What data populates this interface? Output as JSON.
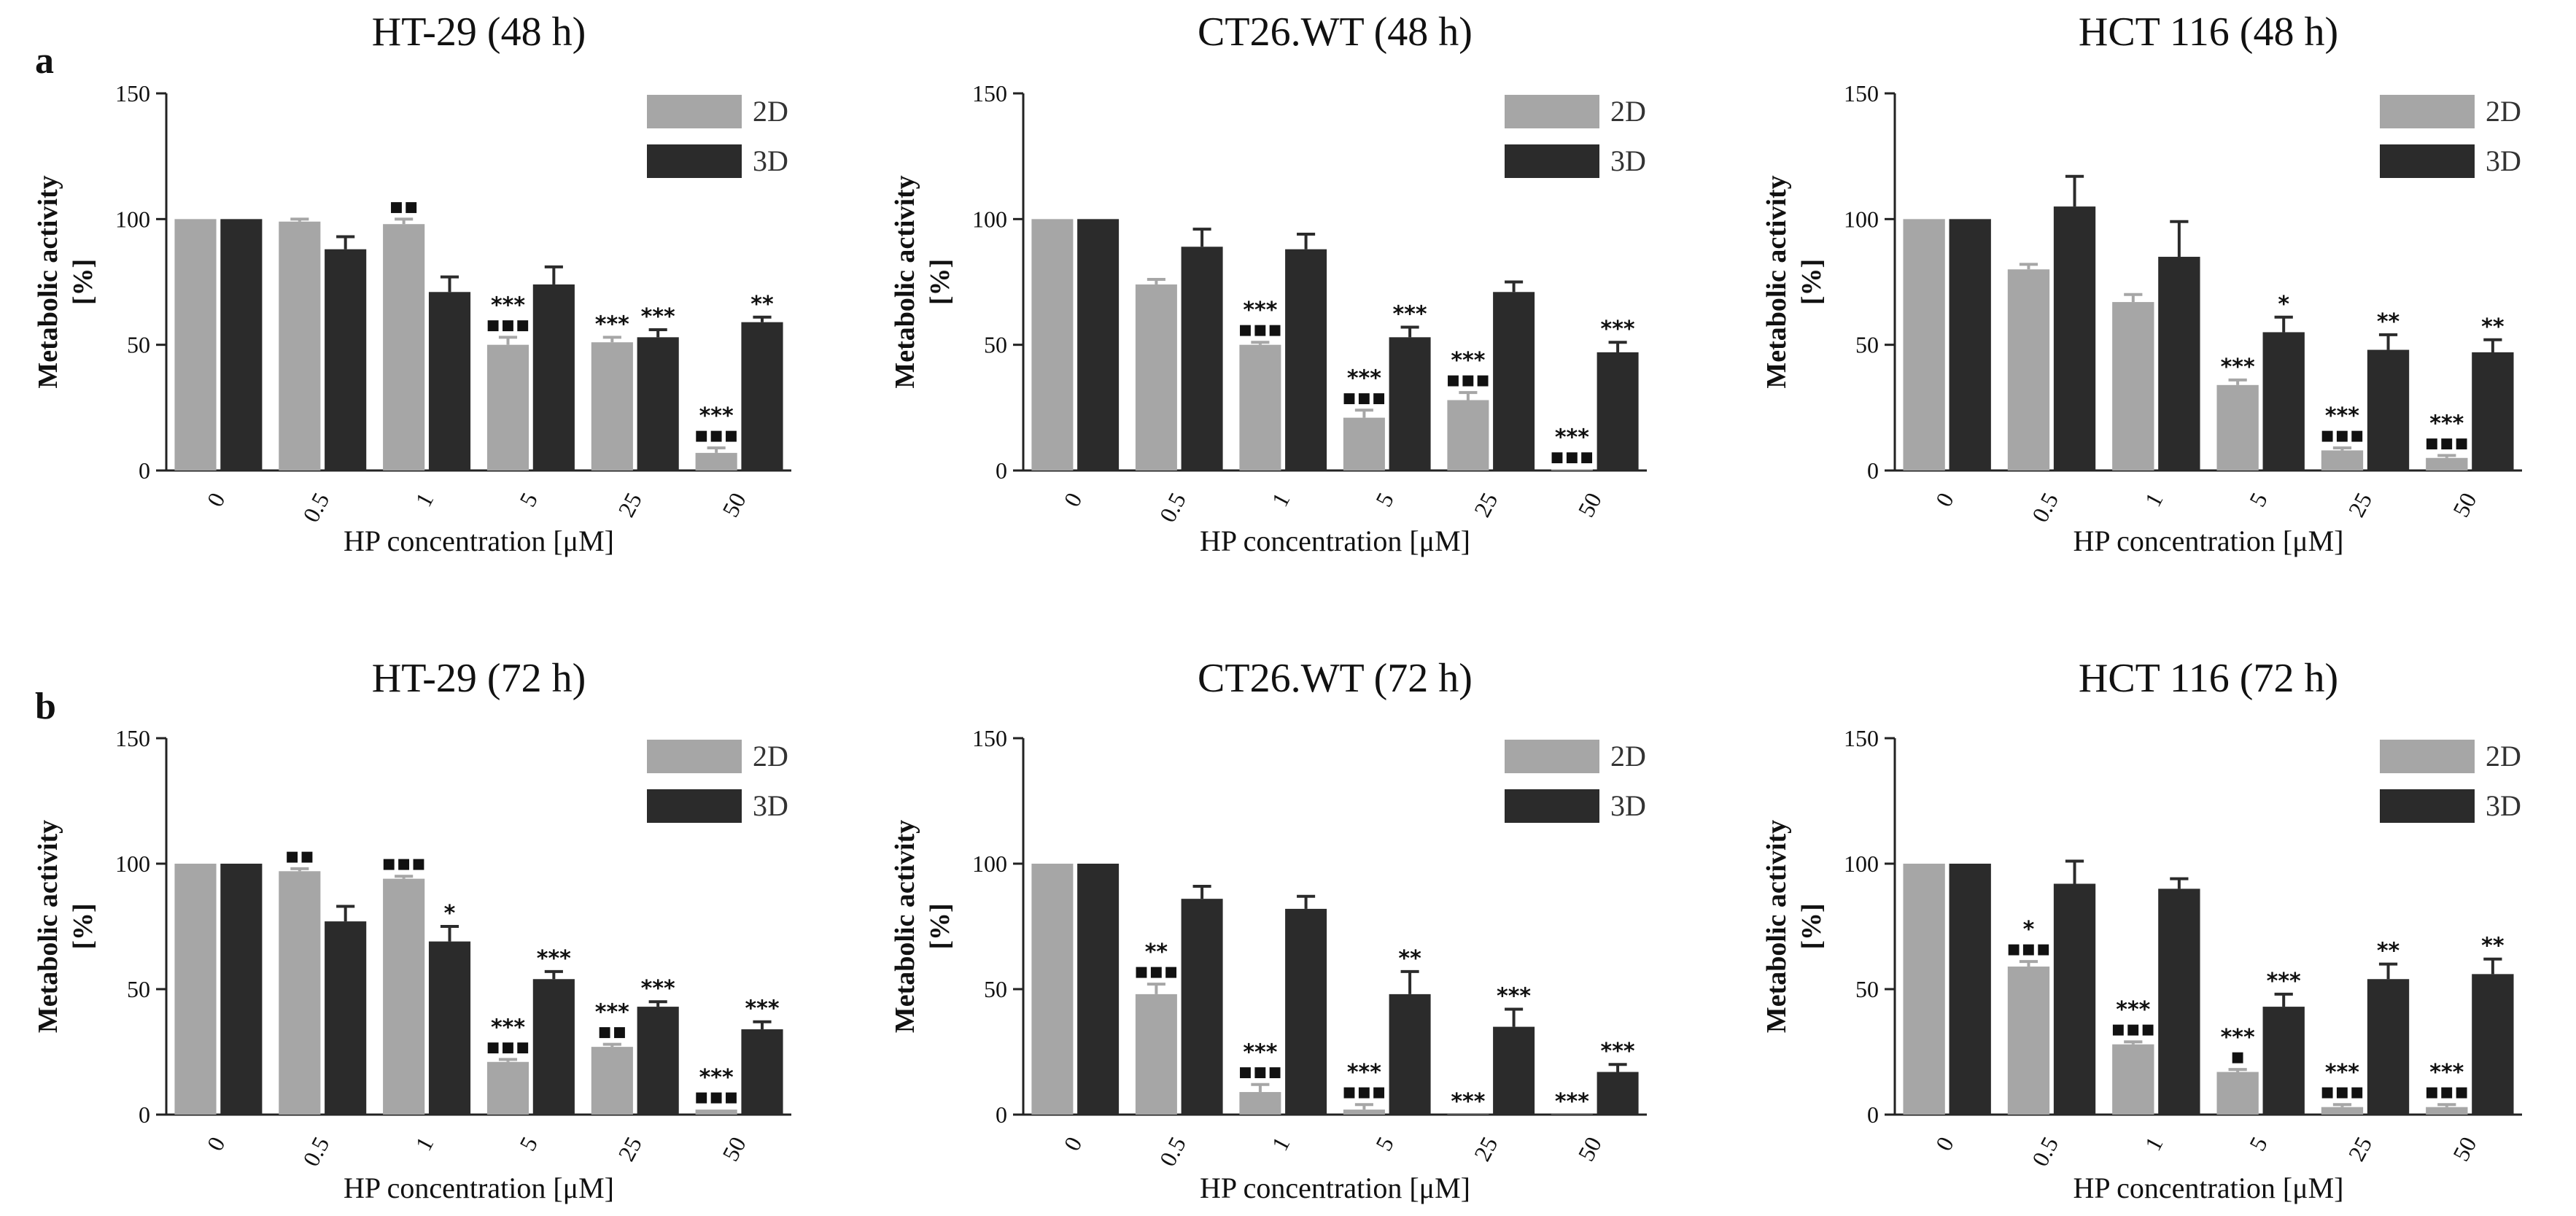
{
  "figure": {
    "panel_labels": [
      "a",
      "b"
    ]
  },
  "colors": {
    "s2D": "#a6a6a6",
    "s3D": "#2b2b2b",
    "axis": "#222222",
    "text": "#111111"
  },
  "chart_data": [
    {
      "type": "bar",
      "title": "HT-29 (48 h)",
      "panel": "a",
      "xlabel": "HP concentration [μM]",
      "ylabel": "Metabolic activity [%]",
      "ylim": [
        0,
        150
      ],
      "yticks": [
        0,
        50,
        100,
        150
      ],
      "categories": [
        "0",
        "0.5",
        "1",
        "5",
        "25",
        "50"
      ],
      "series": [
        {
          "name": "2D",
          "values": [
            100,
            99,
            98,
            50,
            51,
            7
          ],
          "err": [
            0,
            1,
            2,
            3,
            2,
            2
          ],
          "sig": [
            "",
            "",
            "▪▪",
            "***\n▪▪▪",
            "***",
            "***\n▪▪▪"
          ]
        },
        {
          "name": "3D",
          "values": [
            100,
            88,
            71,
            74,
            53,
            59
          ],
          "err": [
            0,
            5,
            6,
            7,
            3,
            2
          ],
          "sig": [
            "",
            "",
            "",
            "",
            "***",
            "**"
          ]
        }
      ]
    },
    {
      "type": "bar",
      "title": "CT26.WT (48 h)",
      "panel": "a",
      "xlabel": "HP concentration [μM]",
      "ylabel": "Metabolic activity [%]",
      "ylim": [
        0,
        150
      ],
      "yticks": [
        0,
        50,
        100,
        150
      ],
      "categories": [
        "0",
        "0.5",
        "1",
        "5",
        "25",
        "50"
      ],
      "series": [
        {
          "name": "2D",
          "values": [
            100,
            74,
            50,
            21,
            28,
            0.5
          ],
          "err": [
            0,
            2,
            1,
            3,
            3,
            0
          ],
          "sig": [
            "",
            "",
            "***\n▪▪▪",
            "***\n▪▪▪",
            "***\n▪▪▪",
            "***\n▪▪▪"
          ]
        },
        {
          "name": "3D",
          "values": [
            100,
            89,
            88,
            53,
            71,
            47
          ],
          "err": [
            0,
            7,
            6,
            4,
            4,
            4
          ],
          "sig": [
            "",
            "",
            "",
            "***",
            "",
            "***"
          ]
        }
      ]
    },
    {
      "type": "bar",
      "title": "HCT 116 (48 h)",
      "panel": "a",
      "xlabel": "HP concentration [μM]",
      "ylabel": "Metabolic activity [%]",
      "ylim": [
        0,
        150
      ],
      "yticks": [
        0,
        50,
        100,
        150
      ],
      "categories": [
        "0",
        "0.5",
        "1",
        "5",
        "25",
        "50"
      ],
      "series": [
        {
          "name": "2D",
          "values": [
            100,
            80,
            67,
            34,
            8,
            5
          ],
          "err": [
            0,
            2,
            3,
            2,
            1,
            1
          ],
          "sig": [
            "",
            "",
            "",
            "***",
            "***\n▪▪▪",
            "***\n▪▪▪"
          ]
        },
        {
          "name": "3D",
          "values": [
            100,
            105,
            85,
            55,
            48,
            47
          ],
          "err": [
            0,
            12,
            14,
            6,
            6,
            5
          ],
          "sig": [
            "",
            "",
            "",
            "*",
            "**",
            "**"
          ]
        }
      ]
    },
    {
      "type": "bar",
      "title": "HT-29 (72 h)",
      "panel": "b",
      "xlabel": "HP concentration [μM]",
      "ylabel": "Metabolic activity [%]",
      "ylim": [
        0,
        150
      ],
      "yticks": [
        0,
        50,
        100,
        150
      ],
      "categories": [
        "0",
        "0.5",
        "1",
        "5",
        "25",
        "50"
      ],
      "series": [
        {
          "name": "2D",
          "values": [
            100,
            97,
            94,
            21,
            27,
            2
          ],
          "err": [
            0,
            1,
            1,
            1,
            1,
            0
          ],
          "sig": [
            "",
            "▪▪",
            "▪▪▪",
            "***\n▪▪▪",
            "***\n▪▪",
            "***\n▪▪▪"
          ]
        },
        {
          "name": "3D",
          "values": [
            100,
            77,
            69,
            54,
            43,
            34
          ],
          "err": [
            0,
            6,
            6,
            3,
            2,
            3
          ],
          "sig": [
            "",
            "",
            "*",
            "***",
            "***",
            "***"
          ]
        }
      ]
    },
    {
      "type": "bar",
      "title": "CT26.WT (72 h)",
      "panel": "b",
      "xlabel": "HP concentration [μM]",
      "ylabel": "Metabolic activity [%]",
      "ylim": [
        0,
        150
      ],
      "yticks": [
        0,
        50,
        100,
        150
      ],
      "categories": [
        "0",
        "0.5",
        "1",
        "5",
        "25",
        "50"
      ],
      "series": [
        {
          "name": "2D",
          "values": [
            100,
            48,
            9,
            2,
            0,
            0
          ],
          "err": [
            0,
            4,
            3,
            2,
            0,
            0
          ],
          "sig": [
            "",
            "**\n▪▪▪",
            "***\n▪▪▪",
            "***\n▪▪▪",
            "***",
            "***"
          ]
        },
        {
          "name": "3D",
          "values": [
            100,
            86,
            82,
            48,
            35,
            17
          ],
          "err": [
            0,
            5,
            5,
            9,
            7,
            3
          ],
          "sig": [
            "",
            "",
            "",
            "**",
            "***",
            "***"
          ]
        }
      ]
    },
    {
      "type": "bar",
      "title": "HCT 116 (72 h)",
      "panel": "b",
      "xlabel": "HP concentration [μM]",
      "ylabel": "Metabolic activity [%]",
      "ylim": [
        0,
        150
      ],
      "yticks": [
        0,
        50,
        100,
        150
      ],
      "categories": [
        "0",
        "0.5",
        "1",
        "5",
        "25",
        "50"
      ],
      "series": [
        {
          "name": "2D",
          "values": [
            100,
            59,
            28,
            17,
            3,
            3
          ],
          "err": [
            0,
            2,
            1,
            1,
            1,
            1
          ],
          "sig": [
            "",
            "*\n▪▪▪",
            "***\n▪▪▪",
            "***\n▪",
            "***\n▪▪▪",
            "***\n▪▪▪"
          ]
        },
        {
          "name": "3D",
          "values": [
            100,
            92,
            90,
            43,
            54,
            56
          ],
          "err": [
            0,
            9,
            4,
            5,
            6,
            6
          ],
          "sig": [
            "",
            "",
            "",
            "***",
            "**",
            "**"
          ]
        }
      ]
    }
  ]
}
